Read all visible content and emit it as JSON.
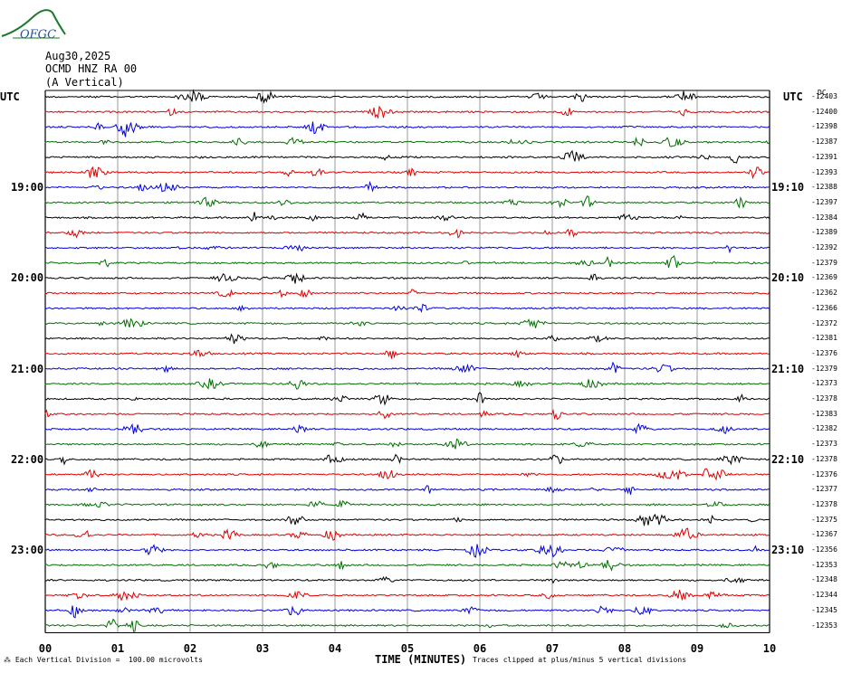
{
  "logo": {
    "text": "OFGC",
    "color": "#1a7a2a",
    "text_color": "#1a55a8"
  },
  "header": {
    "date": "Aug30,2025",
    "station": "OCMD HNZ RA 00",
    "component": "(A Vertical)"
  },
  "left_axis_label": "UTC",
  "right_axis_label": "UTC",
  "dc_label": "DC",
  "left_hour_labels": [
    "19:00",
    "20:00",
    "21:00",
    "22:00",
    "23:00"
  ],
  "right_hour_labels": [
    "19:10",
    "20:10",
    "21:10",
    "22:10",
    "23:10"
  ],
  "x_axis_label": "TIME (MINUTES)",
  "footer_left": "Each Vertical Division =  100.00 microvolts",
  "footer_right": "Traces clipped at plus/minus 5 vertical divisions",
  "chart_data": {
    "type": "line",
    "title": "OCMD HNZ RA 00 (A Vertical)",
    "xlabel": "TIME (MINUTES)",
    "x_ticks": [
      "00",
      "01",
      "02",
      "03",
      "04",
      "05",
      "06",
      "07",
      "08",
      "09",
      "10"
    ],
    "xlim": [
      0,
      10
    ],
    "trace_colors": [
      "#000000",
      "#e00000",
      "#0000e0",
      "#007000"
    ],
    "dc_offsets": [
      -12403,
      -12400,
      -12398,
      -12387,
      -12391,
      -12393,
      -12388,
      -12397,
      -12384,
      -12389,
      -12392,
      -12379,
      -12369,
      -12362,
      -12366,
      -12372,
      -12381,
      -12376,
      -12379,
      -12373,
      -12378,
      -12383,
      -12382,
      -12373,
      -12378,
      -12376,
      -12377,
      -12378,
      -12375,
      -12367,
      -12356,
      -12353,
      -12348,
      -12344,
      -12345,
      -12353
    ],
    "grid": true
  }
}
